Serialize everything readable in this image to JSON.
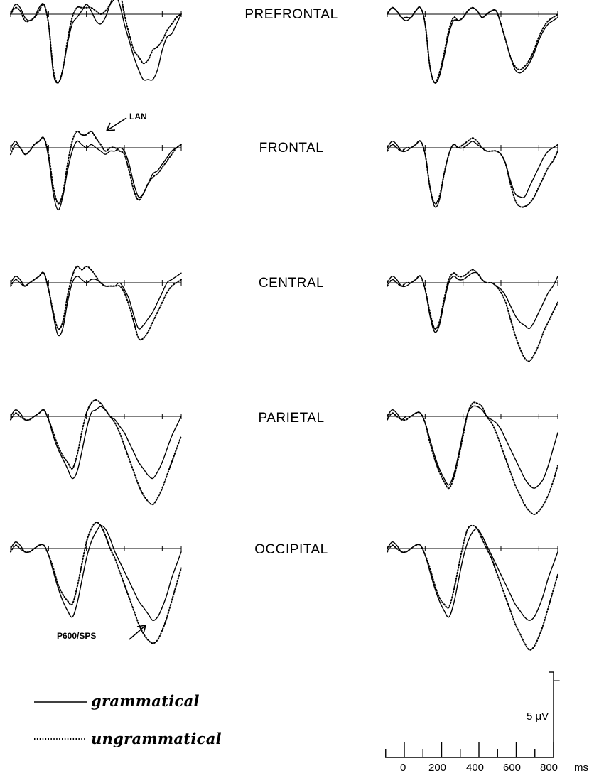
{
  "chart_data": {
    "type": "line",
    "x_unit": "ms",
    "xlim": [
      -100,
      800
    ],
    "regions": [
      "PREFRONTAL",
      "FRONTAL",
      "CENTRAL",
      "PARIETAL",
      "OCCIPITAL"
    ],
    "series": [
      {
        "name": "grammatical",
        "style": "solid"
      },
      {
        "name": "ungrammatical",
        "style": "dotted"
      }
    ],
    "annotations": {
      "lan": "LAN",
      "p600": "P600/SPS"
    },
    "scale_bar": {
      "label": "5 μV",
      "polarity_marker": "−"
    },
    "x_axis": {
      "tick_labels": [
        "0",
        "200",
        "400",
        "600",
        "800"
      ],
      "unit_label": "ms"
    },
    "x": [
      -100,
      -75,
      -50,
      -25,
      0,
      25,
      50,
      75,
      100,
      125,
      150,
      175,
      200,
      225,
      250,
      275,
      300,
      325,
      350,
      375,
      400,
      425,
      450,
      475,
      500,
      525,
      550,
      575,
      600,
      625,
      650,
      675,
      700,
      725,
      750,
      775,
      800
    ],
    "panels": [
      {
        "region": "PREFRONTAL",
        "side": "left",
        "grammatical": [
          0,
          3,
          2,
          -1,
          -2,
          -1,
          2,
          3,
          -3,
          -18,
          -21,
          -17,
          -9,
          -3,
          -1,
          1,
          3,
          1,
          -2,
          -3,
          -1,
          3,
          6,
          3,
          -3,
          -8,
          -13,
          -17,
          -20,
          -20,
          -20,
          -17,
          -11,
          -7,
          -6,
          -3,
          0
        ],
        "ungrammatical": [
          0,
          2,
          1,
          -2,
          -2,
          -1,
          1,
          3,
          -3,
          -17,
          -21,
          -17,
          -8,
          -1,
          2,
          2,
          2,
          2,
          1,
          0,
          1,
          3,
          5,
          7,
          0,
          -6,
          -11,
          -13,
          -15,
          -14,
          -11,
          -10,
          -8,
          -5,
          -3,
          -1,
          0
        ]
      },
      {
        "region": "PREFRONTAL",
        "side": "right",
        "grammatical": [
          0,
          2,
          1,
          -1,
          -2,
          -1,
          1,
          2,
          -3,
          -16,
          -21,
          -19,
          -13,
          -6,
          -2,
          -2,
          -1,
          1,
          2,
          1,
          -1,
          0,
          1,
          1,
          -3,
          -8,
          -13,
          -17,
          -18,
          -17,
          -15,
          -12,
          -8,
          -5,
          -3,
          -2,
          -1
        ],
        "ungrammatical": [
          0,
          2,
          1,
          -1,
          -1,
          -1,
          1,
          2,
          -3,
          -16,
          -21,
          -18,
          -12,
          -5,
          -1,
          -2,
          -1,
          1,
          2,
          1,
          -1,
          0,
          1,
          1,
          -3,
          -8,
          -13,
          -16,
          -17,
          -16,
          -14,
          -11,
          -7,
          -4,
          -2,
          -1,
          0
        ]
      },
      {
        "region": "FRONTAL",
        "side": "left",
        "grammatical": [
          0,
          2,
          0,
          -2,
          -1,
          1,
          2,
          3,
          -3,
          -14,
          -19,
          -15,
          -7,
          -1,
          2,
          1,
          0,
          1,
          0,
          -1,
          -2,
          -1,
          -1,
          0,
          -1,
          -5,
          -11,
          -15,
          -14,
          -11,
          -8,
          -7,
          -5,
          -3,
          -1,
          0,
          1
        ],
        "ungrammatical": [
          -2,
          1,
          0,
          -2,
          -1,
          1,
          2,
          3,
          -2,
          -12,
          -17,
          -14,
          -5,
          2,
          5,
          4,
          4,
          5,
          3,
          1,
          -1,
          0,
          0,
          -1,
          -2,
          -7,
          -13,
          -16,
          -14,
          -11,
          -9,
          -8,
          -6,
          -4,
          -2,
          0,
          1
        ],
        "annotation": "lan"
      },
      {
        "region": "FRONTAL",
        "side": "right",
        "grammatical": [
          0,
          2,
          1,
          -1,
          -1,
          0,
          1,
          2,
          -2,
          -12,
          -18,
          -16,
          -8,
          -2,
          1,
          0,
          0,
          1,
          2,
          1,
          0,
          -1,
          -1,
          -1,
          -2,
          -5,
          -10,
          -14,
          -15,
          -15,
          -12,
          -9,
          -6,
          -3,
          -1,
          0,
          1
        ],
        "ungrammatical": [
          -1,
          1,
          0,
          -1,
          0,
          0,
          1,
          2,
          -2,
          -12,
          -17,
          -15,
          -8,
          -2,
          1,
          0,
          1,
          2,
          3,
          2,
          0,
          -1,
          -1,
          -1,
          -2,
          -5,
          -11,
          -16,
          -18,
          -18,
          -17,
          -15,
          -12,
          -9,
          -6,
          -4,
          -1
        ]
      },
      {
        "region": "CENTRAL",
        "side": "left",
        "grammatical": [
          0,
          2,
          1,
          -1,
          0,
          1,
          2,
          3,
          -2,
          -10,
          -16,
          -14,
          -6,
          0,
          2,
          1,
          0,
          1,
          1,
          0,
          -1,
          -1,
          -1,
          0,
          -2,
          -5,
          -10,
          -14,
          -13,
          -11,
          -9,
          -6,
          -3,
          0,
          1,
          2,
          3
        ],
        "ungrammatical": [
          -1,
          1,
          0,
          -1,
          0,
          1,
          2,
          3,
          -2,
          -9,
          -14,
          -12,
          -4,
          2,
          5,
          4,
          5,
          4,
          2,
          0,
          -1,
          -1,
          -1,
          -1,
          -3,
          -7,
          -12,
          -17,
          -17,
          -15,
          -12,
          -9,
          -6,
          -3,
          -1,
          0,
          1
        ]
      },
      {
        "region": "CENTRAL",
        "side": "right",
        "grammatical": [
          0,
          2,
          1,
          -1,
          -1,
          0,
          1,
          2,
          -2,
          -10,
          -15,
          -13,
          -6,
          0,
          2,
          1,
          1,
          2,
          3,
          3,
          1,
          0,
          0,
          -1,
          -2,
          -4,
          -7,
          -10,
          -12,
          -13,
          -14,
          -12,
          -9,
          -6,
          -3,
          -1,
          2
        ],
        "ungrammatical": [
          -1,
          1,
          0,
          -1,
          0,
          0,
          1,
          2,
          -2,
          -9,
          -14,
          -12,
          -5,
          1,
          3,
          2,
          2,
          3,
          4,
          3,
          1,
          0,
          0,
          -1,
          -3,
          -6,
          -11,
          -16,
          -20,
          -23,
          -24,
          -22,
          -19,
          -15,
          -12,
          -9,
          -6
        ]
      },
      {
        "region": "PARIETAL",
        "side": "left",
        "grammatical": [
          0,
          2,
          1,
          -1,
          -1,
          0,
          1,
          2,
          -1,
          -6,
          -10,
          -13,
          -16,
          -19,
          -17,
          -11,
          -4,
          1,
          2,
          3,
          2,
          0,
          -1,
          -3,
          -5,
          -8,
          -11,
          -14,
          -16,
          -18,
          -19,
          -17,
          -14,
          -10,
          -6,
          -3,
          0
        ],
        "ungrammatical": [
          -1,
          1,
          0,
          -1,
          -1,
          0,
          1,
          2,
          -1,
          -5,
          -9,
          -12,
          -14,
          -16,
          -12,
          -5,
          1,
          4,
          5,
          4,
          2,
          0,
          -2,
          -5,
          -9,
          -13,
          -17,
          -21,
          -24,
          -26,
          -27,
          -25,
          -22,
          -18,
          -14,
          -10,
          -6
        ]
      },
      {
        "region": "PARIETAL",
        "side": "right",
        "grammatical": [
          0,
          2,
          1,
          -1,
          0,
          0,
          1,
          1,
          -2,
          -7,
          -12,
          -16,
          -19,
          -21,
          -18,
          -12,
          -5,
          1,
          3,
          3,
          2,
          0,
          -1,
          -2,
          -4,
          -7,
          -10,
          -13,
          -16,
          -19,
          -21,
          -22,
          -21,
          -19,
          -15,
          -10,
          -5
        ],
        "ungrammatical": [
          -1,
          1,
          0,
          -1,
          -1,
          0,
          1,
          1,
          -2,
          -8,
          -13,
          -17,
          -20,
          -22,
          -19,
          -13,
          -6,
          1,
          4,
          4,
          3,
          0,
          -2,
          -5,
          -9,
          -13,
          -17,
          -21,
          -24,
          -27,
          -29,
          -30,
          -29,
          -27,
          -24,
          -20,
          -15
        ]
      },
      {
        "region": "OCCIPITAL",
        "side": "left",
        "grammatical": [
          0,
          2,
          1,
          -1,
          -1,
          0,
          1,
          1,
          -2,
          -7,
          -12,
          -16,
          -19,
          -21,
          -17,
          -10,
          -3,
          2,
          5,
          7,
          6,
          3,
          -1,
          -4,
          -7,
          -10,
          -13,
          -16,
          -18,
          -20,
          -22,
          -21,
          -18,
          -14,
          -9,
          -5,
          -1
        ],
        "ungrammatical": [
          -1,
          1,
          0,
          -1,
          -1,
          0,
          1,
          1,
          -2,
          -6,
          -11,
          -14,
          -16,
          -17,
          -12,
          -5,
          2,
          6,
          8,
          7,
          4,
          0,
          -3,
          -7,
          -11,
          -15,
          -19,
          -23,
          -26,
          -28,
          -29,
          -28,
          -25,
          -21,
          -16,
          -11,
          -6
        ]
      },
      {
        "region": "OCCIPITAL",
        "side": "right",
        "grammatical": [
          0,
          2,
          1,
          -1,
          -1,
          0,
          1,
          1,
          -2,
          -7,
          -12,
          -16,
          -19,
          -21,
          -17,
          -10,
          -3,
          2,
          5,
          6,
          4,
          1,
          -2,
          -5,
          -8,
          -11,
          -14,
          -17,
          -19,
          -21,
          -22,
          -21,
          -18,
          -14,
          -9,
          -5,
          -1
        ],
        "ungrammatical": [
          -1,
          1,
          0,
          -1,
          -1,
          0,
          1,
          1,
          -2,
          -6,
          -11,
          -15,
          -17,
          -18,
          -13,
          -6,
          1,
          6,
          7,
          6,
          3,
          0,
          -3,
          -7,
          -11,
          -15,
          -19,
          -23,
          -26,
          -29,
          -31,
          -30,
          -27,
          -23,
          -18,
          -13,
          -8
        ]
      }
    ]
  }
}
